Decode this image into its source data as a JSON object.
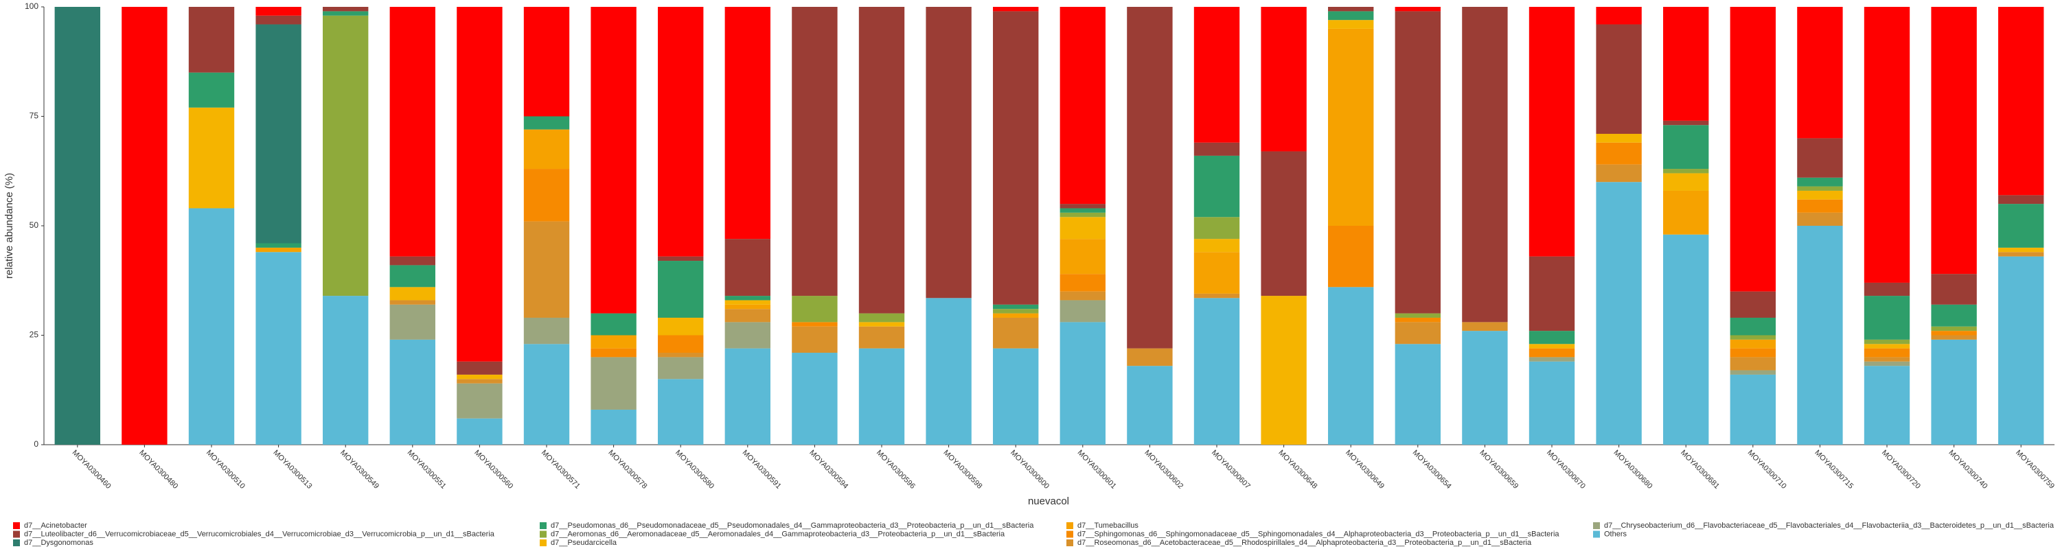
{
  "chart_data": {
    "type": "stacked-bar",
    "x_label": "nuevacol",
    "y_label": "relative abundance (%)",
    "categories": [
      "MOYA0300460",
      "MOYA0300480",
      "MOYA0300510",
      "MOYA0300513",
      "MOYA0300549",
      "MOYA0300551",
      "MOYA0300560",
      "MOYA0300571",
      "MOYA0300578",
      "MOYA0300580",
      "MOYA0300591",
      "MOYA0300594",
      "MOYA0300596",
      "MOYA0300598",
      "MOYA0300600",
      "MOYA0300601",
      "MOYA0300602",
      "MOYA0300607",
      "MOYA0300648",
      "MOYA0300649",
      "MOYA0300654",
      "MOYA0300659",
      "MOYA0300670",
      "MOYA0300680",
      "MOYA0300681",
      "MOYA0300710",
      "MOYA0300715",
      "MOYA0300720",
      "MOYA0300740",
      "MOYA0300759"
    ],
    "ylim": [
      0,
      100
    ],
    "yticks": [
      0,
      25,
      50,
      75,
      100
    ],
    "series": [
      {
        "name": "d7__Acinetobacter",
        "color": "#ff0000",
        "values": [
          0,
          100,
          0,
          2,
          0,
          57,
          81,
          25,
          70,
          57,
          53,
          0,
          0,
          0,
          1,
          45,
          0,
          31,
          33,
          0,
          1,
          0,
          57,
          4,
          26,
          65,
          30,
          63,
          61,
          43
        ]
      },
      {
        "name": "d7__Luteolibacter_d6__Verrucomicrobiaceae_d5__Verrucomicrobiales_d4__Verrucomicrobiae_d3__Verrucomicrobia_p__un_d1__sBacteria",
        "color": "#9b3d35",
        "values": [
          0,
          0,
          15,
          2,
          1,
          2,
          3,
          0,
          0,
          1,
          13,
          66,
          70,
          66.5,
          67,
          1,
          78,
          3,
          33,
          1,
          69,
          72,
          17,
          25,
          1,
          6,
          9,
          3,
          7,
          2
        ]
      },
      {
        "name": "d7__Dysgonomonas",
        "color": "#2e7d6e",
        "values": [
          100,
          0,
          0,
          50,
          0,
          0,
          0,
          0,
          0,
          0,
          0,
          0,
          0,
          0,
          0,
          0,
          0,
          0,
          0,
          0,
          0,
          0,
          0,
          0,
          0,
          0,
          0,
          0,
          0,
          0
        ]
      },
      {
        "name": "d7__Pseudomonas_d6__Pseudomonadaceae_d5__Pseudomonadales_d4__Gammaproteobacteria_d3__Proteobacteria_p__un_d1__sBacteria",
        "color": "#2e9e6a",
        "values": [
          0,
          0,
          8,
          1,
          1,
          5,
          0,
          3,
          5,
          13,
          1,
          0,
          0,
          0,
          1,
          1,
          0,
          14,
          0,
          2,
          0,
          0,
          3,
          0,
          10,
          4,
          2,
          10,
          5,
          10
        ]
      },
      {
        "name": "d7__Aeromonas_d6__Aeromonadaceae_d5__Aeromonadales_d4__Gammaproteobacteria_d3__Proteobacteria_p__un_d1__sBacteria",
        "color": "#8faa3b",
        "values": [
          0,
          0,
          0,
          0,
          64,
          0,
          0,
          0,
          0,
          0,
          0,
          6,
          2,
          0,
          1,
          1,
          0,
          5,
          0,
          0,
          1,
          0,
          0,
          0,
          1,
          1,
          1,
          1,
          1,
          0
        ]
      },
      {
        "name": "d7__Pseudarcicella",
        "color": "#f5b400",
        "values": [
          0,
          0,
          23,
          0,
          0,
          3,
          1,
          0,
          0,
          4,
          1,
          0,
          1,
          0,
          0,
          5,
          0,
          3,
          34,
          2,
          0,
          0,
          1,
          2,
          4,
          0,
          2,
          1,
          0,
          1
        ]
      },
      {
        "name": "d7__Tumebacillus",
        "color": "#f6a200",
        "values": [
          0,
          0,
          0,
          1,
          0,
          0,
          0,
          9,
          3,
          0,
          1,
          0,
          0,
          0,
          1,
          8,
          0,
          9.5,
          0,
          45,
          0,
          0,
          0,
          0,
          10,
          2,
          0,
          0,
          0,
          0
        ]
      },
      {
        "name": "d7__Sphingomonas_d6__Sphingomonadaceae_d5__Sphingomonadales_d4__Alphaproteobacteria_d3__Proteobacteria_p__un_d1__sBacteria",
        "color": "#f78a00",
        "values": [
          0,
          0,
          0,
          0,
          0,
          0,
          0,
          12,
          2,
          4,
          0,
          1,
          0,
          0,
          0,
          4,
          0,
          0,
          0,
          14,
          1,
          0,
          2,
          5,
          0,
          2,
          3,
          2,
          1,
          0
        ]
      },
      {
        "name": "d7__Roseomonas_d6__Acetobacteraceae_d5__Rhodospirillales_d4__Alphaproteobacteria_d3__Proteobacteria_p__un_d1__sBacteria",
        "color": "#d9912b",
        "values": [
          0,
          0,
          0,
          0,
          0,
          1,
          1,
          22,
          0,
          1,
          3,
          6,
          5,
          0,
          7,
          2,
          4,
          1,
          0,
          0,
          5,
          2,
          0,
          4,
          0,
          3,
          3,
          1,
          1,
          1
        ]
      },
      {
        "name": "d7__Chryseobacterium_d6__Flavobacteriaceae_d5__Flavobacteriales_d4__Flavobacteriia_d3__Bacteroidetes_p__un_d1__sBacteria",
        "color": "#9ba67e",
        "values": [
          0,
          0,
          0,
          0,
          0,
          8,
          8,
          6,
          12,
          5,
          6,
          0,
          0,
          0,
          0,
          5,
          0,
          0,
          0,
          0,
          0,
          0,
          1,
          0,
          0,
          1,
          0,
          1,
          0,
          0
        ]
      },
      {
        "name": "Others",
        "color": "#5bbad6",
        "values": [
          0,
          0,
          54,
          44,
          34,
          24,
          6,
          23,
          8,
          15,
          22,
          21,
          22,
          33.5,
          22,
          28,
          18,
          33.5,
          0,
          36,
          23,
          26,
          19,
          60,
          48,
          16,
          50,
          18,
          24,
          43
        ]
      }
    ]
  }
}
